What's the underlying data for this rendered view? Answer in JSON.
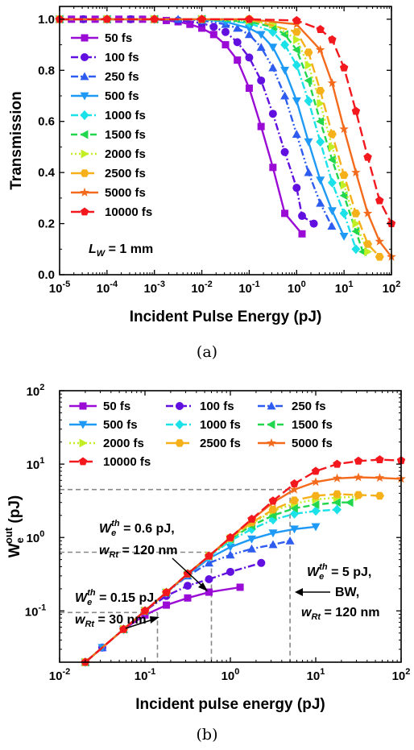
{
  "colors": {
    "s50": "#9A0BD6",
    "s100": "#6210E0",
    "s250": "#2E5CF0",
    "s500": "#1E9AF6",
    "s1000": "#1BE1E8",
    "s1500": "#22D64E",
    "s2000": "#C4EE24",
    "s2500": "#F6B01A",
    "s5000": "#F46A1C",
    "s10000": "#F2181E"
  },
  "chart_data": [
    {
      "id": "a",
      "type": "line",
      "caption": "(a)",
      "xlabel": "Incident Pulse Energy (pJ)",
      "ylabel": "Transmission",
      "x_scale": "log",
      "xlim": [
        1e-05,
        100
      ],
      "ylim": [
        0,
        1.05
      ],
      "x_ticks": [
        {
          "base": "10",
          "exp": "-5"
        },
        {
          "base": "10",
          "exp": "-4"
        },
        {
          "base": "10",
          "exp": "-3"
        },
        {
          "base": "10",
          "exp": "-2"
        },
        {
          "base": "10",
          "exp": "-1"
        },
        {
          "base": "10",
          "exp": "0"
        },
        {
          "base": "10",
          "exp": "1"
        },
        {
          "base": "10",
          "exp": "2"
        }
      ],
      "y_ticks": [
        "0.0",
        "0.2",
        "0.4",
        "0.6",
        "0.8",
        "1.0"
      ],
      "legend_placement": "left",
      "annotation": {
        "main": "L",
        "sub": "W",
        "rest": " = 1 mm"
      },
      "series": [
        {
          "name": "50 fs",
          "color": "#9A0BD6",
          "marker": "square",
          "dash": "solid",
          "x": [
            1e-05,
            1.78e-05,
            3.16e-05,
            5.62e-05,
            0.0001,
            0.000178,
            0.000316,
            0.000562,
            0.001,
            0.00178,
            0.00316,
            0.00562,
            0.01,
            0.0178,
            0.0316,
            0.0562,
            0.1,
            0.178,
            0.316,
            0.562,
            1.3
          ],
          "y": [
            1.0,
            1.0,
            1.0,
            1.0,
            1.0,
            1.0,
            1.0,
            1.0,
            1.0,
            0.995,
            0.99,
            0.98,
            0.965,
            0.94,
            0.9,
            0.84,
            0.73,
            0.58,
            0.42,
            0.24,
            0.16
          ]
        },
        {
          "name": "100 fs",
          "color": "#6210E0",
          "marker": "circle",
          "dash": "dashdot",
          "x": [
            1e-05,
            3.16e-05,
            0.0001,
            0.000316,
            0.001,
            0.00316,
            0.01,
            0.0178,
            0.0316,
            0.0562,
            0.1,
            0.178,
            0.316,
            0.562,
            1.0,
            1.3,
            2.3
          ],
          "y": [
            1.0,
            1.0,
            1.0,
            1.0,
            1.0,
            0.995,
            0.985,
            0.97,
            0.95,
            0.91,
            0.85,
            0.76,
            0.63,
            0.48,
            0.34,
            0.23,
            0.2
          ]
        },
        {
          "name": "250 fs",
          "color": "#2E5CF0",
          "marker": "triangle-up",
          "dash": "dashdotdot",
          "x": [
            1e-05,
            0.0001,
            0.001,
            0.00316,
            0.01,
            0.0316,
            0.0562,
            0.1,
            0.178,
            0.316,
            0.562,
            1.0,
            1.78,
            3.16,
            5.5
          ],
          "y": [
            1.0,
            1.0,
            1.0,
            1.0,
            0.995,
            0.98,
            0.965,
            0.94,
            0.89,
            0.81,
            0.7,
            0.55,
            0.4,
            0.28,
            0.19
          ]
        },
        {
          "name": "500 fs",
          "color": "#1E9AF6",
          "marker": "triangle-down",
          "dash": "solid",
          "x": [
            1e-05,
            0.0001,
            0.001,
            0.01,
            0.0316,
            0.1,
            0.178,
            0.316,
            0.562,
            1.0,
            1.78,
            3.16,
            5.62,
            10.0
          ],
          "y": [
            1.0,
            1.0,
            1.0,
            1.0,
            0.99,
            0.965,
            0.94,
            0.89,
            0.8,
            0.68,
            0.52,
            0.37,
            0.25,
            0.15
          ]
        },
        {
          "name": "1000 fs",
          "color": "#1BE1E8",
          "marker": "diamond",
          "dash": "dashdot",
          "x": [
            1e-05,
            0.0001,
            0.001,
            0.01,
            0.1,
            0.316,
            0.562,
            1.0,
            1.78,
            3.16,
            5.62,
            10.0,
            17.8
          ],
          "y": [
            1.0,
            1.0,
            1.0,
            1.0,
            0.985,
            0.95,
            0.9,
            0.82,
            0.68,
            0.52,
            0.36,
            0.24,
            0.1
          ]
        },
        {
          "name": "1500 fs",
          "color": "#22D64E",
          "marker": "triangle-left",
          "dash": "dash",
          "x": [
            1e-05,
            0.0001,
            0.001,
            0.01,
            0.1,
            0.316,
            0.562,
            1.0,
            1.78,
            3.16,
            5.62,
            10.0,
            17.8,
            25.0
          ],
          "y": [
            1.0,
            1.0,
            1.0,
            1.0,
            0.99,
            0.97,
            0.94,
            0.88,
            0.76,
            0.6,
            0.45,
            0.31,
            0.17,
            0.09
          ]
        },
        {
          "name": "2000 fs",
          "color": "#C4EE24",
          "marker": "triangle-right",
          "dash": "dot",
          "x": [
            1e-05,
            0.0001,
            0.001,
            0.01,
            0.1,
            0.316,
            1.0,
            1.78,
            3.16,
            5.62,
            10.0,
            17.8,
            31.6
          ],
          "y": [
            1.0,
            1.0,
            1.0,
            1.0,
            0.995,
            0.98,
            0.92,
            0.82,
            0.67,
            0.5,
            0.35,
            0.2,
            0.09
          ]
        },
        {
          "name": "2500 fs",
          "color": "#F6B01A",
          "marker": "hexagon",
          "dash": "dashlong",
          "x": [
            1e-05,
            0.0001,
            0.001,
            0.01,
            0.1,
            1.0,
            1.78,
            3.16,
            5.62,
            10.0,
            17.8,
            31.6,
            56.2
          ],
          "y": [
            1.0,
            1.0,
            1.0,
            1.0,
            1.0,
            0.95,
            0.87,
            0.72,
            0.55,
            0.39,
            0.24,
            0.12,
            0.07
          ]
        },
        {
          "name": "5000 fs",
          "color": "#F46A1C",
          "marker": "star",
          "dash": "solid",
          "x": [
            1e-05,
            0.0001,
            0.001,
            0.01,
            0.1,
            1.0,
            3.16,
            5.62,
            10.0,
            17.8,
            31.6,
            56.2,
            100
          ],
          "y": [
            1.0,
            1.0,
            1.0,
            1.0,
            1.0,
            0.98,
            0.88,
            0.75,
            0.57,
            0.4,
            0.24,
            0.13,
            0.07
          ]
        },
        {
          "name": "10000 fs",
          "color": "#F2181E",
          "marker": "pentagon",
          "dash": "dashlong",
          "x": [
            1e-05,
            0.0001,
            0.001,
            0.01,
            0.1,
            1.0,
            3.16,
            5.62,
            10.0,
            17.8,
            31.6,
            56.2,
            100
          ],
          "y": [
            1.0,
            1.0,
            1.0,
            1.0,
            1.0,
            0.995,
            0.96,
            0.92,
            0.81,
            0.64,
            0.46,
            0.29,
            0.2
          ]
        }
      ]
    },
    {
      "id": "b",
      "type": "line",
      "caption": "(b)",
      "xlabel": "Incident pulse energy (pJ)",
      "ylabel": {
        "main": "W",
        "sub": "e",
        "sup": "out",
        "rest": " (pJ)"
      },
      "x_scale": "log",
      "y_scale": "log",
      "xlim": [
        0.01,
        100
      ],
      "ylim": [
        0.02,
        100
      ],
      "x_ticks": [
        {
          "base": "10",
          "exp": "-2"
        },
        {
          "base": "10",
          "exp": "-1"
        },
        {
          "base": "10",
          "exp": "0"
        },
        {
          "base": "10",
          "exp": "1"
        },
        {
          "base": "10",
          "exp": "2"
        }
      ],
      "y_ticks": [
        {
          "base": "10",
          "exp": "-1"
        },
        {
          "base": "10",
          "exp": "0"
        },
        {
          "base": "10",
          "exp": "1"
        },
        {
          "base": "10",
          "exp": "2"
        }
      ],
      "legend_placement": "top, 3 columns",
      "guides": [
        {
          "x": 0.14,
          "y": 0.095
        },
        {
          "x": 0.6,
          "y": 0.63
        },
        {
          "x": 5.0,
          "y": 4.5
        }
      ],
      "annotations": [
        {
          "main": "W",
          "sub": "e",
          "sup": "th",
          "rest": " = 0.6 pJ,",
          "line2_main": "w",
          "line2_sub": "Rt",
          "line2_rest": " = 120 nm",
          "points_to": {
            "x": 0.6,
            "y": 0.63
          }
        },
        {
          "main": "W",
          "sub": "e",
          "sup": "th",
          "rest": " = 0.15 pJ,",
          "line2_main": "w",
          "line2_sub": "Rt",
          "line2_rest": " = 30 nm",
          "points_to": {
            "x": 0.14,
            "y": 0.095
          }
        },
        {
          "main": "W",
          "sub": "e",
          "sup": "th",
          "rest": " = 5 pJ,",
          "line2_text": "BW,",
          "line3_main": "w",
          "line3_sub": "Rt",
          "line3_rest": " = 120 nm",
          "points_to": {
            "x": 5.0,
            "y": 0.12
          }
        }
      ],
      "series": [
        {
          "name": "50 fs",
          "color": "#9A0BD6",
          "marker": "square",
          "dash": "solid",
          "x": [
            0.02,
            0.0316,
            0.0562,
            0.1,
            0.178,
            0.316,
            0.562,
            1.3
          ],
          "y": [
            0.02,
            0.0316,
            0.0562,
            0.088,
            0.12,
            0.15,
            0.18,
            0.21
          ]
        },
        {
          "name": "100 fs",
          "color": "#6210E0",
          "marker": "circle",
          "dash": "dashdot",
          "x": [
            0.02,
            0.0316,
            0.0562,
            0.1,
            0.178,
            0.316,
            0.562,
            1.0,
            2.3
          ],
          "y": [
            0.02,
            0.0316,
            0.0562,
            0.1,
            0.16,
            0.22,
            0.27,
            0.34,
            0.45
          ]
        },
        {
          "name": "250 fs",
          "color": "#2E5CF0",
          "marker": "triangle-up",
          "dash": "dashdotdot",
          "x": [
            0.02,
            0.0316,
            0.0562,
            0.1,
            0.178,
            0.316,
            0.562,
            1.0,
            1.78,
            3.16,
            5.0
          ],
          "y": [
            0.02,
            0.0316,
            0.0562,
            0.1,
            0.178,
            0.3,
            0.45,
            0.58,
            0.7,
            0.8,
            0.9
          ]
        },
        {
          "name": "500 fs",
          "color": "#1E9AF6",
          "marker": "triangle-down",
          "dash": "solid",
          "x": [
            0.02,
            0.0316,
            0.0562,
            0.1,
            0.178,
            0.316,
            0.562,
            1.0,
            1.78,
            3.16,
            5.62,
            10.0
          ],
          "y": [
            0.02,
            0.0316,
            0.0562,
            0.1,
            0.178,
            0.31,
            0.52,
            0.74,
            0.95,
            1.15,
            1.3,
            1.4
          ]
        },
        {
          "name": "1000 fs",
          "color": "#1BE1E8",
          "marker": "diamond",
          "dash": "dashdot",
          "x": [
            0.02,
            0.0562,
            0.1,
            0.178,
            0.316,
            0.562,
            1.0,
            1.78,
            3.16,
            5.62,
            10.0,
            17.8
          ],
          "y": [
            0.02,
            0.0562,
            0.1,
            0.178,
            0.32,
            0.55,
            0.9,
            1.3,
            1.75,
            2.1,
            2.3,
            2.4
          ]
        },
        {
          "name": "1500 fs",
          "color": "#22D64E",
          "marker": "triangle-left",
          "dash": "dash",
          "x": [
            0.02,
            0.0562,
            0.1,
            0.178,
            0.316,
            0.562,
            1.0,
            1.78,
            3.16,
            5.62,
            10.0,
            17.8,
            25.0
          ],
          "y": [
            0.02,
            0.0562,
            0.1,
            0.178,
            0.32,
            0.56,
            0.95,
            1.45,
            2.0,
            2.5,
            2.8,
            3.0,
            3.0
          ]
        },
        {
          "name": "2000 fs",
          "color": "#C4EE24",
          "marker": "triangle-right",
          "dash": "dot",
          "x": [
            0.02,
            0.0562,
            0.1,
            0.178,
            0.316,
            0.562,
            1.0,
            1.78,
            3.16,
            5.62,
            10.0,
            17.8,
            31.6
          ],
          "y": [
            0.02,
            0.0562,
            0.1,
            0.178,
            0.32,
            0.56,
            0.97,
            1.55,
            2.3,
            2.9,
            3.3,
            3.5,
            3.6
          ]
        },
        {
          "name": "2500 fs",
          "color": "#F6B01A",
          "marker": "hexagon",
          "dash": "dashlong",
          "x": [
            0.02,
            0.0562,
            0.1,
            0.178,
            0.316,
            0.562,
            1.0,
            1.78,
            3.16,
            5.62,
            10.0,
            17.8,
            31.6,
            56.2
          ],
          "y": [
            0.02,
            0.0562,
            0.1,
            0.178,
            0.32,
            0.56,
            0.98,
            1.6,
            2.4,
            3.2,
            3.7,
            3.9,
            3.8,
            3.7
          ]
        },
        {
          "name": "5000 fs",
          "color": "#F46A1C",
          "marker": "star",
          "dash": "solid",
          "x": [
            0.02,
            0.0562,
            0.1,
            0.178,
            0.316,
            0.562,
            1.0,
            1.78,
            3.16,
            5.62,
            10.0,
            17.8,
            31.6,
            56.2,
            100
          ],
          "y": [
            0.02,
            0.0562,
            0.1,
            0.178,
            0.32,
            0.56,
            1.0,
            1.75,
            3.0,
            4.5,
            5.7,
            6.4,
            6.6,
            6.5,
            6.3
          ]
        },
        {
          "name": "10000 fs",
          "color": "#F2181E",
          "marker": "pentagon",
          "dash": "dashlong",
          "x": [
            0.02,
            0.0562,
            0.1,
            0.178,
            0.316,
            0.562,
            1.0,
            1.78,
            3.16,
            5.62,
            10.0,
            17.8,
            31.6,
            56.2,
            100
          ],
          "y": [
            0.02,
            0.0562,
            0.1,
            0.178,
            0.32,
            0.56,
            1.0,
            1.78,
            3.16,
            5.4,
            8.0,
            10.0,
            11.0,
            11.5,
            11.2
          ]
        }
      ]
    }
  ]
}
